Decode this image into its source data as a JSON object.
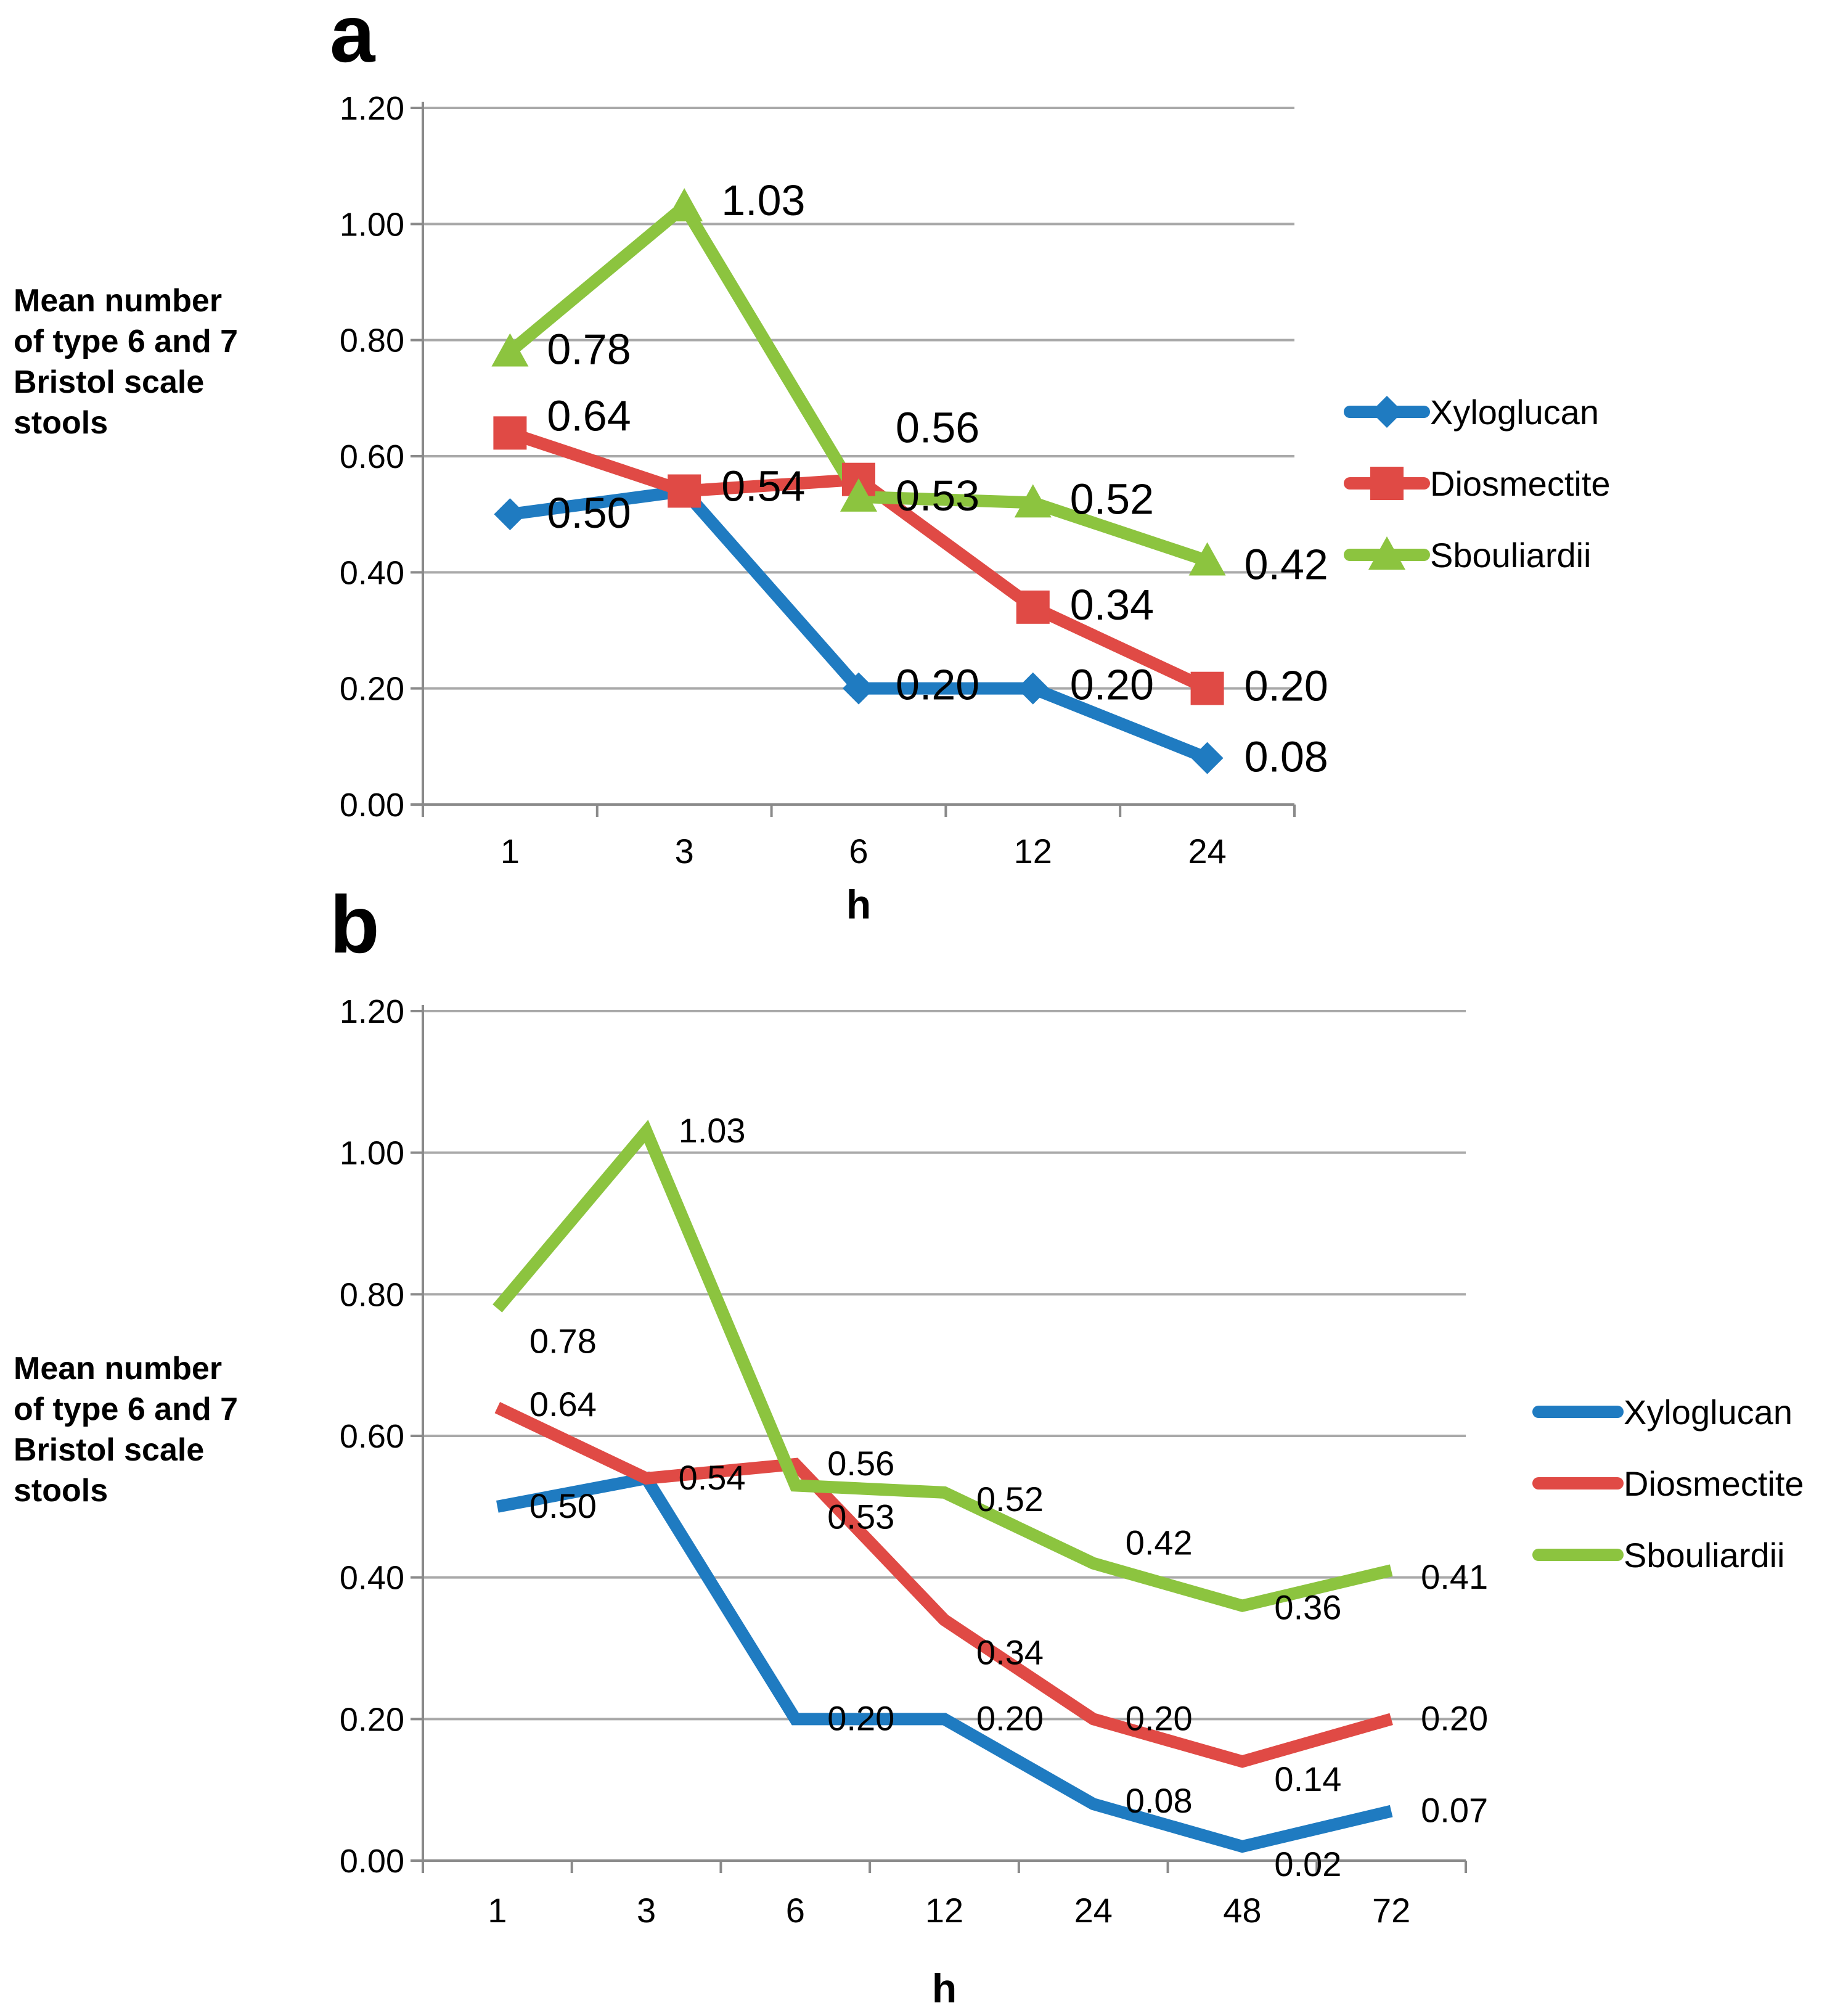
{
  "chart_data": [
    {
      "panel": "a",
      "type": "line",
      "title": "",
      "xlabel": "h",
      "ylabel": [
        "Mean number",
        "of type 6 and 7",
        "Bristol scale",
        "stools"
      ],
      "categories": [
        "1",
        "3",
        "6",
        "12",
        "24"
      ],
      "ylim": [
        0,
        1.2
      ],
      "yticks": [
        "0.00",
        "0.20",
        "0.40",
        "0.60",
        "0.80",
        "1.00",
        "1.20"
      ],
      "grid": true,
      "legend": "right",
      "series": [
        {
          "name": "Xyloglucan",
          "color": "#1f7bc1",
          "marker": "diamond",
          "values": [
            0.5,
            0.54,
            0.2,
            0.2,
            0.08
          ],
          "labels": [
            "0.50",
            "",
            "0.20",
            "0.20",
            "0.08"
          ]
        },
        {
          "name": "Diosmectite",
          "color": "#e04a45",
          "marker": "square",
          "values": [
            0.64,
            0.54,
            0.56,
            0.34,
            0.2
          ],
          "labels": [
            "0.64",
            "0.54",
            "0.56",
            "0.34",
            "0.20"
          ]
        },
        {
          "name": "Sbouliardii",
          "color": "#8cc43f",
          "marker": "triangle",
          "values": [
            0.78,
            1.03,
            0.53,
            0.52,
            0.42
          ],
          "labels": [
            "0.78",
            "1.03",
            "0.53",
            "0.52",
            "0.42"
          ]
        }
      ]
    },
    {
      "panel": "b",
      "type": "line",
      "title": "",
      "xlabel": "h",
      "ylabel": [
        "Mean number",
        "of type 6 and 7",
        "Bristol scale",
        "stools"
      ],
      "categories": [
        "1",
        "3",
        "6",
        "12",
        "24",
        "48",
        "72"
      ],
      "ylim": [
        0,
        1.2
      ],
      "yticks": [
        "0.00",
        "0.20",
        "0.40",
        "0.60",
        "0.80",
        "1.00",
        "1.20"
      ],
      "grid": true,
      "legend": "right",
      "series": [
        {
          "name": "Xyloglucan",
          "color": "#1f7bc1",
          "marker": "none",
          "values": [
            0.5,
            0.54,
            0.2,
            0.2,
            0.08,
            0.02,
            0.07
          ],
          "labels": [
            "0.50",
            "",
            "0.20",
            "0.20",
            "0.08",
            "0.02",
            "0.07"
          ]
        },
        {
          "name": "Diosmectite",
          "color": "#e04a45",
          "marker": "none",
          "values": [
            0.64,
            0.54,
            0.56,
            0.34,
            0.2,
            0.14,
            0.2
          ],
          "labels": [
            "0.64",
            "0.54",
            "0.56",
            "0.34",
            "0.20",
            "0.14",
            "0.20"
          ]
        },
        {
          "name": "Sbouliardii",
          "color": "#8cc43f",
          "marker": "none",
          "values": [
            0.78,
            1.03,
            0.53,
            0.52,
            0.42,
            0.36,
            0.41
          ],
          "labels": [
            "0.78",
            "1.03",
            "0.53",
            "0.52",
            "0.42",
            "0.36",
            "0.41"
          ]
        }
      ]
    }
  ]
}
